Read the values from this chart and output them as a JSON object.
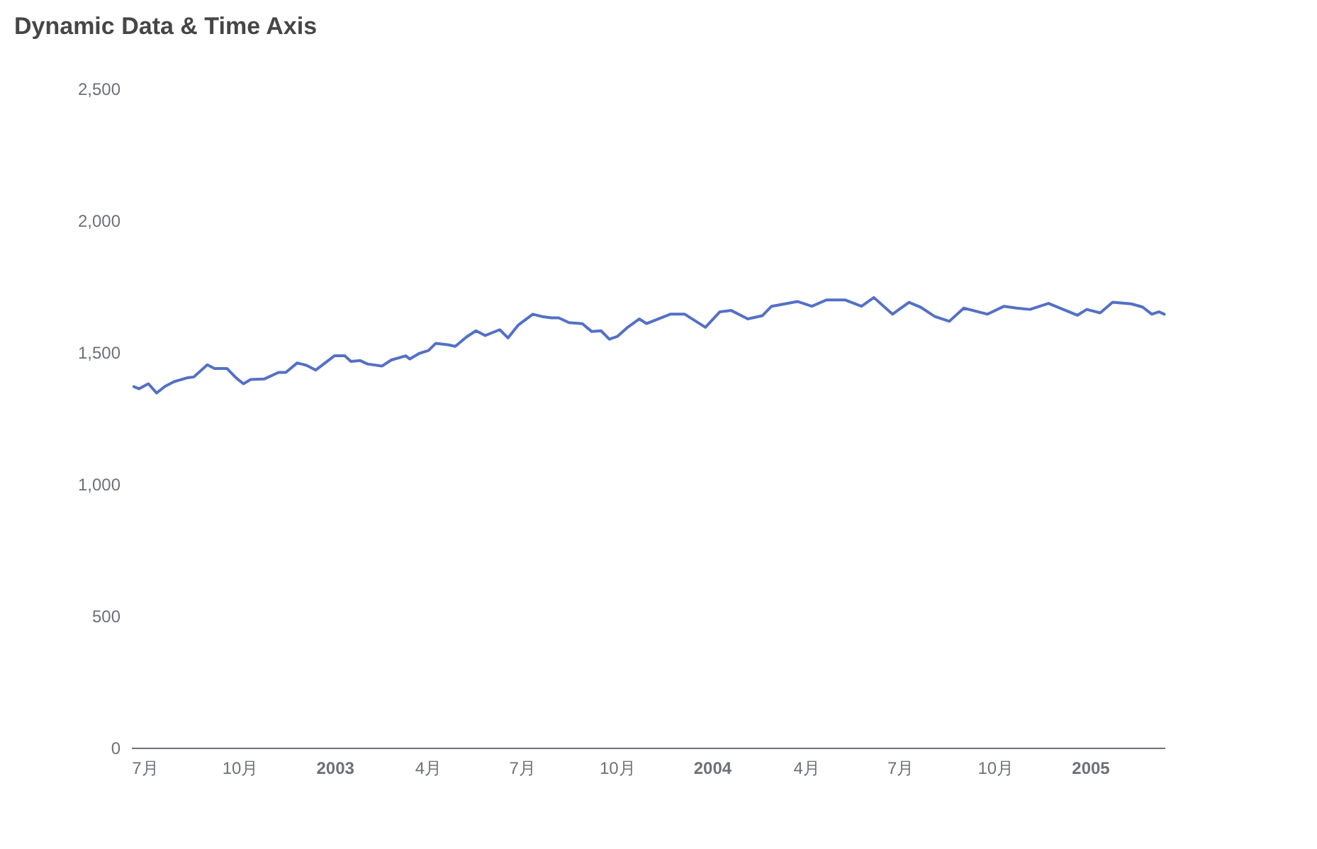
{
  "chart_data": {
    "type": "line",
    "title": "Dynamic Data & Time Axis",
    "x": [
      "2002-06-20",
      "2002-06-25",
      "2002-07-04",
      "2002-07-12",
      "2002-07-20",
      "2002-07-29",
      "2002-08-10",
      "2002-08-17",
      "2002-08-30",
      "2002-09-06",
      "2002-09-18",
      "2002-09-27",
      "2002-10-04",
      "2002-10-11",
      "2002-10-24",
      "2002-11-07",
      "2002-11-14",
      "2002-11-25",
      "2002-12-04",
      "2002-12-13",
      "2002-12-22",
      "2002-12-31",
      "2003-01-10",
      "2003-01-16",
      "2003-01-25",
      "2003-02-01",
      "2003-02-15",
      "2003-02-24",
      "2003-03-10",
      "2003-03-14",
      "2003-03-23",
      "2003-04-01",
      "2003-04-08",
      "2003-04-20",
      "2003-04-27",
      "2003-05-08",
      "2003-05-17",
      "2003-05-26",
      "2003-06-09",
      "2003-06-17",
      "2003-06-27",
      "2003-07-11",
      "2003-07-20",
      "2003-07-29",
      "2003-08-05",
      "2003-08-15",
      "2003-08-28",
      "2003-09-06",
      "2003-09-15",
      "2003-09-23",
      "2003-10-01",
      "2003-10-11",
      "2003-10-22",
      "2003-10-29",
      "2003-11-21",
      "2003-12-05",
      "2003-12-25",
      "2004-01-08",
      "2004-01-19",
      "2004-02-04",
      "2004-02-18",
      "2004-02-27",
      "2004-03-23",
      "2004-04-06",
      "2004-04-20",
      "2004-05-08",
      "2004-05-24",
      "2004-06-05",
      "2004-06-23",
      "2004-07-09",
      "2004-07-20",
      "2004-08-03",
      "2004-08-17",
      "2004-08-31",
      "2004-09-23",
      "2004-10-09",
      "2004-10-21",
      "2004-11-03",
      "2004-11-21",
      "2004-12-19",
      "2004-12-28",
      "2005-01-10",
      "2005-01-22",
      "2005-02-09",
      "2005-02-20",
      "2005-03-01",
      "2005-03-08",
      "2005-03-13"
    ],
    "series": [
      {
        "color": "#5470c6",
        "values": [
          1372,
          1364,
          1383,
          1348,
          1373,
          1391,
          1405,
          1409,
          1455,
          1441,
          1441,
          1405,
          1383,
          1399,
          1401,
          1426,
          1426,
          1462,
          1453,
          1435,
          1462,
          1489,
          1489,
          1468,
          1471,
          1458,
          1450,
          1473,
          1489,
          1477,
          1498,
          1509,
          1536,
          1531,
          1525,
          1561,
          1584,
          1566,
          1588,
          1557,
          1606,
          1647,
          1638,
          1633,
          1633,
          1615,
          1611,
          1581,
          1584,
          1552,
          1563,
          1598,
          1629,
          1611,
          1647,
          1647,
          1597,
          1656,
          1661,
          1629,
          1641,
          1677,
          1695,
          1677,
          1701,
          1701,
          1677,
          1710,
          1647,
          1692,
          1674,
          1638,
          1620,
          1670,
          1647,
          1677,
          1670,
          1665,
          1688,
          1643,
          1665,
          1652,
          1692,
          1686,
          1674,
          1647,
          1656,
          1647
        ]
      }
    ],
    "xlim": [
      "2002-06-18",
      "2005-03-14"
    ],
    "xticks": [
      {
        "value": "2002-07-01",
        "label": "7月"
      },
      {
        "value": "2002-10-01",
        "label": "10月"
      },
      {
        "value": "2003-01-01",
        "label": "2003"
      },
      {
        "value": "2003-04-01",
        "label": "4月"
      },
      {
        "value": "2003-07-01",
        "label": "7月"
      },
      {
        "value": "2003-10-01",
        "label": "10月"
      },
      {
        "value": "2004-01-01",
        "label": "2004"
      },
      {
        "value": "2004-04-01",
        "label": "4月"
      },
      {
        "value": "2004-07-01",
        "label": "7月"
      },
      {
        "value": "2004-10-01",
        "label": "10月"
      },
      {
        "value": "2005-01-01",
        "label": "2005"
      }
    ],
    "ylim": [
      0,
      2500
    ],
    "yticks": [
      0,
      {
        "value": 500,
        "label": "500"
      },
      {
        "value": 1000,
        "label": "1,000"
      },
      {
        "value": 1500,
        "label": "1,500"
      },
      {
        "value": 2000,
        "label": "2,000"
      },
      {
        "value": 2500,
        "label": "2,500"
      }
    ],
    "marker": "none",
    "line_style": "solid"
  }
}
